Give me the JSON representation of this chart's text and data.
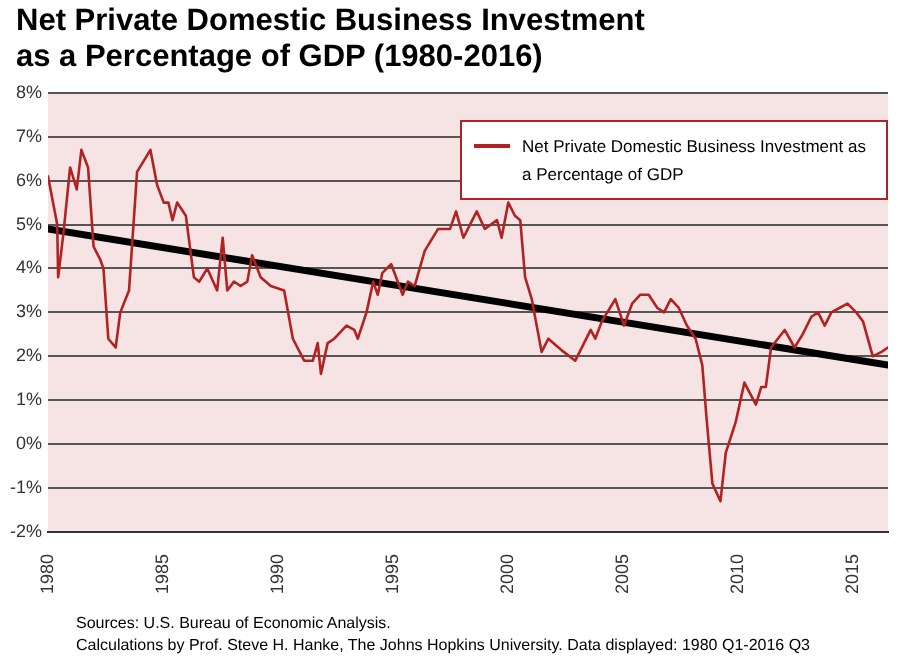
{
  "chart_data": {
    "type": "line",
    "title": "Net Private Domestic Business Investment as a Percentage of GDP (1980-2016)",
    "xlim": [
      1980,
      2016.5
    ],
    "xticks": [
      1980,
      1985,
      1990,
      1995,
      2000,
      2005,
      2010,
      2015
    ],
    "ylim": [
      -2,
      8
    ],
    "yticks": [
      {
        "value": -2,
        "label": "-2%"
      },
      {
        "value": -1,
        "label": "-1%"
      },
      {
        "value": 0,
        "label": "0%"
      },
      {
        "value": 1,
        "label": "1%"
      },
      {
        "value": 2,
        "label": "2%"
      },
      {
        "value": 3,
        "label": "3%"
      },
      {
        "value": 4,
        "label": "4%"
      },
      {
        "value": 5,
        "label": "5%"
      },
      {
        "value": 6,
        "label": "6%"
      },
      {
        "value": 7,
        "label": "7%"
      },
      {
        "value": 8,
        "label": "8%"
      }
    ],
    "grid": "y",
    "legend": "top right",
    "marker": "none",
    "line_style": "solid",
    "series": [
      {
        "name": "Net Private Domestic Business Investment as a Percentage of GDP",
        "color": "#b22222",
        "x": [
          1980.0,
          1980.4,
          1980.44,
          1980.67,
          1980.96,
          1981.25,
          1981.45,
          1981.74,
          1981.98,
          1982.27,
          1982.41,
          1982.62,
          1982.94,
          1983.14,
          1983.52,
          1983.87,
          1984.45,
          1984.74,
          1985.03,
          1985.23,
          1985.41,
          1985.61,
          1985.99,
          1986.34,
          1986.57,
          1986.92,
          1987.35,
          1987.59,
          1987.79,
          1988.08,
          1988.37,
          1988.66,
          1988.87,
          1989.24,
          1989.68,
          1990.26,
          1990.64,
          1991.13,
          1991.51,
          1991.72,
          1991.86,
          1992.15,
          1992.44,
          1992.97,
          1993.31,
          1993.46,
          1993.84,
          1994.13,
          1994.33,
          1994.53,
          1994.91,
          1995.41,
          1995.64,
          1995.93,
          1996.37,
          1996.95,
          1997.47,
          1997.73,
          1998.05,
          1998.63,
          1998.98,
          1999.51,
          1999.71,
          2000.0,
          2000.29,
          2000.52,
          2000.73,
          2001.02,
          2001.45,
          2001.74,
          2002.41,
          2002.91,
          2003.58,
          2003.78,
          2004.07,
          2004.65,
          2005.03,
          2005.38,
          2005.73,
          2006.1,
          2006.48,
          2006.77,
          2007.06,
          2007.41,
          2007.76,
          2008.14,
          2008.43,
          2008.63,
          2008.87,
          2009.22,
          2009.45,
          2009.88,
          2010.26,
          2010.76,
          2010.99,
          2011.19,
          2011.42,
          2012.01,
          2012.44,
          2012.79,
          2013.17,
          2013.46,
          2013.75,
          2014.04,
          2014.39,
          2014.74,
          2015.12,
          2015.41,
          2015.84,
          2016.22,
          2016.5
        ],
        "values": [
          6.1,
          5.0,
          3.8,
          4.8,
          6.3,
          5.8,
          6.7,
          6.3,
          4.5,
          4.2,
          4.0,
          2.4,
          2.2,
          3.0,
          3.5,
          6.2,
          6.7,
          5.9,
          5.5,
          5.5,
          5.1,
          5.5,
          5.2,
          3.8,
          3.7,
          4.0,
          3.5,
          4.7,
          3.5,
          3.7,
          3.6,
          3.7,
          4.3,
          3.8,
          3.6,
          3.5,
          2.4,
          1.9,
          1.9,
          2.3,
          1.6,
          2.3,
          2.4,
          2.7,
          2.6,
          2.4,
          3.0,
          3.7,
          3.4,
          3.9,
          4.1,
          3.4,
          3.7,
          3.6,
          4.4,
          4.9,
          4.9,
          5.3,
          4.7,
          5.3,
          4.9,
          5.1,
          4.7,
          5.5,
          5.2,
          5.1,
          3.8,
          3.3,
          2.1,
          2.4,
          2.1,
          1.9,
          2.6,
          2.4,
          2.8,
          3.3,
          2.7,
          3.2,
          3.4,
          3.4,
          3.1,
          3.0,
          3.3,
          3.1,
          2.7,
          2.4,
          1.8,
          0.5,
          -0.9,
          -1.3,
          -0.2,
          0.5,
          1.4,
          0.9,
          1.3,
          1.3,
          2.2,
          2.6,
          2.2,
          2.5,
          2.9,
          3.0,
          2.7,
          3.0,
          3.1,
          3.2,
          3.0,
          2.8,
          2.0,
          2.1,
          2.2
        ]
      },
      {
        "type": "line",
        "color": "#000000",
        "x": [
          1980,
          2016.5
        ],
        "values": [
          4.9,
          1.8
        ]
      }
    ],
    "annotations": [
      "Sources:  U.S. Bureau of Economic Analysis.",
      "Calculations by Prof. Steve H. Hanke, The Johns Hopkins University. Data displayed: 1980 Q1-2016 Q3"
    ]
  }
}
